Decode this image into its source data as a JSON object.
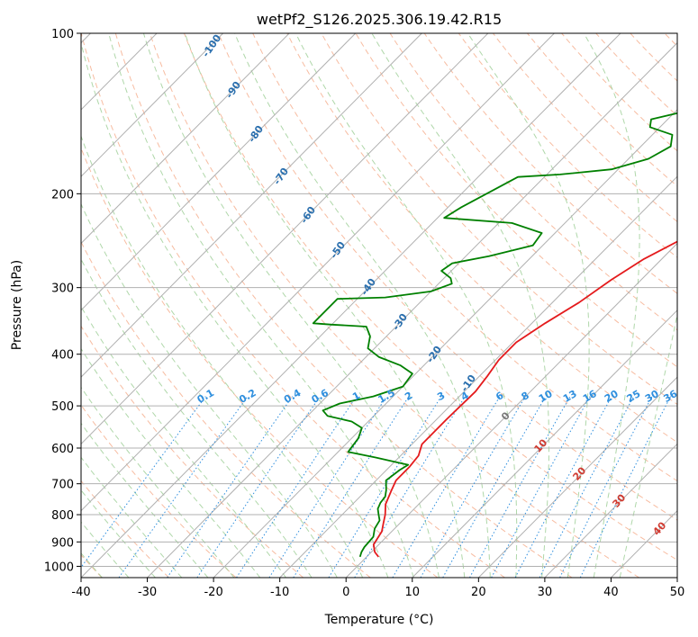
{
  "chart_data": {
    "type": "line",
    "title": "wetPf2_S126.2025.306.19.42.R15",
    "xlabel": "Temperature (°C)",
    "ylabel": "Pressure (hPa)",
    "xlim": [
      -40,
      50
    ],
    "ylim": [
      1050,
      100
    ],
    "y_scale": "log",
    "grid": true,
    "x_ticks": [
      -40,
      -30,
      -20,
      -10,
      0,
      10,
      20,
      30,
      40,
      50
    ],
    "y_ticks": [
      100,
      200,
      300,
      400,
      500,
      600,
      700,
      800,
      900,
      1000
    ],
    "dry_adiabat_labels": [
      "-100",
      "-90",
      "-80",
      "-70",
      "-60",
      "-50",
      "-40",
      "-30",
      "-20",
      "-10"
    ],
    "mixing_ratio_labels": [
      "0.1",
      "0.2",
      "0.4",
      "0.6",
      "1",
      "1.5",
      "2",
      "3",
      "4",
      "6",
      "8",
      "10",
      "13",
      "16",
      "20",
      "25",
      "30",
      "36"
    ],
    "moist_adiabat_labels": [
      "0",
      "10",
      "20",
      "30",
      "40"
    ],
    "series": [
      {
        "color": "#e41a1c",
        "points": [
          [
            1.8,
            960
          ],
          [
            0.5,
            940
          ],
          [
            -0.8,
            910
          ],
          [
            -1.5,
            860
          ],
          [
            -2.5,
            830
          ],
          [
            -3.5,
            800
          ],
          [
            -5,
            765
          ],
          [
            -6.2,
            720
          ],
          [
            -7,
            690
          ],
          [
            -7,
            650
          ],
          [
            -7.3,
            620
          ],
          [
            -8.5,
            590
          ],
          [
            -8.5,
            530
          ],
          [
            -8.3,
            470
          ],
          [
            -8.8,
            440
          ],
          [
            -9.5,
            410
          ],
          [
            -9.5,
            380
          ],
          [
            -8,
            350
          ],
          [
            -6,
            320
          ],
          [
            -4.5,
            290
          ],
          [
            -2.7,
            265
          ],
          [
            0.5,
            240
          ],
          [
            5,
            220
          ],
          [
            9,
            205
          ],
          [
            12,
            190
          ],
          [
            16,
            170
          ],
          [
            19,
            155
          ],
          [
            21.5,
            145
          ],
          [
            25,
            133
          ],
          [
            28,
            120
          ],
          [
            31,
            110
          ],
          [
            34,
            100
          ]
        ]
      },
      {
        "color": "#008000",
        "points": [
          [
            -1,
            960
          ],
          [
            -1.5,
            940
          ],
          [
            -1.8,
            920
          ],
          [
            -2,
            880
          ],
          [
            -3,
            850
          ],
          [
            -3.5,
            820
          ],
          [
            -4.5,
            800
          ],
          [
            -5.5,
            780
          ],
          [
            -6,
            760
          ],
          [
            -6.2,
            740
          ],
          [
            -7,
            720
          ],
          [
            -8.5,
            690
          ],
          [
            -8,
            660
          ],
          [
            -7.5,
            645
          ],
          [
            -9,
            640
          ],
          [
            -13.5,
            625
          ],
          [
            -18.5,
            610
          ],
          [
            -19,
            575
          ],
          [
            -20,
            550
          ],
          [
            -22.5,
            535
          ],
          [
            -27,
            522
          ],
          [
            -28.5,
            510
          ],
          [
            -27,
            495
          ],
          [
            -23,
            480
          ],
          [
            -20,
            460
          ],
          [
            -20.5,
            435
          ],
          [
            -23.5,
            420
          ],
          [
            -28,
            405
          ],
          [
            -31,
            390
          ],
          [
            -32.5,
            370
          ],
          [
            -34.5,
            355
          ],
          [
            -40,
            352
          ],
          [
            -43,
            350
          ],
          [
            -43,
            315
          ],
          [
            -36,
            313
          ],
          [
            -30,
            305
          ],
          [
            -28,
            295
          ],
          [
            -29,
            288
          ],
          [
            -31.5,
            279
          ],
          [
            -31,
            270
          ],
          [
            -26.5,
            262
          ],
          [
            -21.5,
            250
          ],
          [
            -22,
            237
          ],
          [
            -28,
            227
          ],
          [
            -39,
            222
          ],
          [
            -38,
            212
          ],
          [
            -34,
            186
          ],
          [
            -28,
            184
          ],
          [
            -21,
            180
          ],
          [
            -17,
            172
          ],
          [
            -15.5,
            163
          ],
          [
            -17,
            155
          ],
          [
            -21.5,
            150
          ],
          [
            -22.5,
            145
          ],
          [
            -18.5,
            140
          ],
          [
            -10,
            135
          ],
          [
            -6,
            125
          ],
          [
            -5,
            115
          ],
          [
            -3,
            105
          ],
          [
            -1.5,
            100
          ]
        ]
      }
    ]
  }
}
